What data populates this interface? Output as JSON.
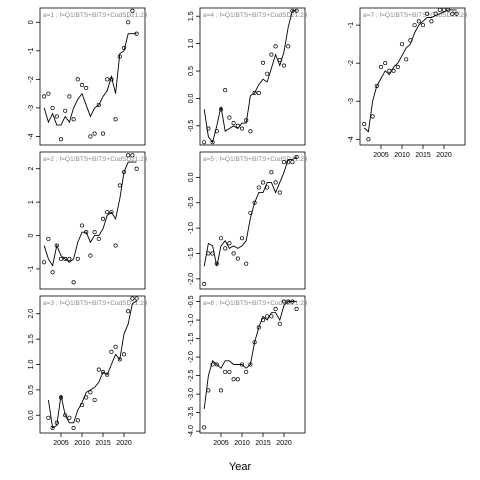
{
  "xlabel": "Year",
  "chart_data": [
    {
      "type": "scatter",
      "title": "a=1 : f=Q1!BTS+BITS+CodSD21:23",
      "xlabel": "",
      "ylabel": "",
      "xlim": [
        2000,
        2025
      ],
      "ylim": [
        -4.3,
        0.5
      ],
      "yticks": [
        "0",
        "-1",
        "-2",
        "-3",
        "-4"
      ],
      "xticks": [],
      "series": [
        {
          "kind": "points",
          "x": [
            2001,
            2002,
            2003,
            2004,
            2005,
            2006,
            2007,
            2008,
            2009,
            2010,
            2011,
            2012,
            2013,
            2014,
            2015,
            2016,
            2017,
            2018,
            2019,
            2020,
            2021,
            2022,
            2023
          ],
          "y": [
            -2.6,
            -2.5,
            -3.0,
            -3.3,
            -4.1,
            -3.1,
            -2.6,
            -3.4,
            -2.0,
            -2.2,
            -2.3,
            -4.0,
            -3.9,
            -2.9,
            -3.9,
            -2.0,
            -2.0,
            -3.4,
            -1.2,
            -0.9,
            0.0,
            0.4,
            -0.4
          ]
        },
        {
          "kind": "line",
          "x": [
            2001,
            2002,
            2003,
            2004,
            2005,
            2006,
            2007,
            2008,
            2009,
            2010,
            2011,
            2012,
            2013,
            2014,
            2015,
            2016,
            2017,
            2018,
            2019,
            2020,
            2021,
            2022,
            2023
          ],
          "y": [
            -3.0,
            -3.5,
            -3.2,
            -3.6,
            -3.6,
            -3.3,
            -3.5,
            -3.0,
            -2.7,
            -2.5,
            -2.9,
            -3.3,
            -3.0,
            -2.9,
            -2.6,
            -2.4,
            -1.9,
            -2.5,
            -1.1,
            -1.0,
            -0.4,
            -0.4,
            -0.4
          ]
        }
      ]
    },
    {
      "type": "scatter",
      "title": "a=2 : f=Q1!BTS+BITS+CodSD21:23",
      "xlabel": "",
      "ylabel": "",
      "xlim": [
        2000,
        2025
      ],
      "ylim": [
        -1.6,
        2.5
      ],
      "yticks": [
        "2",
        "1",
        "0",
        "-1"
      ],
      "xticks": [],
      "series": [
        {
          "kind": "points",
          "x": [
            2001,
            2002,
            2003,
            2004,
            2005,
            2006,
            2007,
            2008,
            2009,
            2010,
            2011,
            2012,
            2013,
            2014,
            2015,
            2016,
            2017,
            2018,
            2019,
            2020,
            2021,
            2022,
            2023
          ],
          "y": [
            -0.8,
            -0.1,
            -1.1,
            -0.3,
            -0.7,
            -0.7,
            -0.7,
            -1.4,
            -0.7,
            0.3,
            0.1,
            -0.6,
            0.1,
            -0.1,
            0.5,
            0.7,
            0.7,
            -0.3,
            1.5,
            1.9,
            2.4,
            2.4,
            2.0
          ]
        },
        {
          "kind": "line",
          "x": [
            2001,
            2002,
            2003,
            2004,
            2005,
            2006,
            2007,
            2008,
            2009,
            2010,
            2011,
            2012,
            2013,
            2014,
            2015,
            2016,
            2017,
            2018,
            2019,
            2020,
            2021,
            2022,
            2023
          ],
          "y": [
            -0.3,
            -0.7,
            -0.9,
            -0.3,
            -0.6,
            -0.7,
            -0.8,
            -0.7,
            -0.2,
            0.1,
            0.1,
            -0.2,
            0.0,
            0.0,
            0.2,
            0.6,
            0.7,
            0.5,
            1.1,
            1.9,
            2.2,
            2.2,
            2.2
          ]
        }
      ]
    },
    {
      "type": "scatter",
      "title": "a=3 : f=Q1!BTS+BITS+CodSD21:23",
      "xlabel": "",
      "ylabel": "",
      "xlim": [
        2000,
        2025
      ],
      "ylim": [
        -0.35,
        2.35
      ],
      "yticks": [
        "2.0",
        "1.5",
        "1.0",
        "0.5",
        "0.0"
      ],
      "xticks": [
        "2005",
        "2010",
        "2015",
        "2020"
      ],
      "series": [
        {
          "kind": "points",
          "x": [
            2002,
            2003,
            2004,
            2005,
            2006,
            2007,
            2008,
            2009,
            2010,
            2011,
            2012,
            2013,
            2014,
            2015,
            2016,
            2017,
            2018,
            2019,
            2020,
            2021,
            2022,
            2023
          ],
          "y": [
            -0.05,
            -0.25,
            -0.15,
            0.35,
            0.0,
            -0.05,
            -0.25,
            -0.1,
            0.2,
            0.35,
            0.45,
            0.3,
            0.9,
            0.85,
            0.8,
            1.25,
            1.35,
            1.1,
            1.2,
            2.05,
            2.3,
            2.3
          ]
        },
        {
          "kind": "line",
          "x": [
            2002,
            2003,
            2004,
            2005,
            2006,
            2007,
            2008,
            2009,
            2010,
            2011,
            2012,
            2013,
            2014,
            2015,
            2016,
            2017,
            2018,
            2019,
            2020,
            2021,
            2022,
            2023
          ],
          "y": [
            0.3,
            -0.25,
            -0.2,
            0.4,
            0.0,
            -0.15,
            -0.15,
            0.1,
            0.25,
            0.45,
            0.5,
            0.55,
            0.65,
            0.85,
            0.8,
            1.0,
            1.2,
            1.1,
            1.6,
            1.8,
            2.2,
            2.25
          ]
        }
      ]
    },
    {
      "type": "scatter",
      "title": "a=4 : f=Q1!BTS+BITS+CodSD21:23",
      "xlabel": "",
      "ylabel": "",
      "xlim": [
        2000,
        2025
      ],
      "ylim": [
        -0.85,
        1.65
      ],
      "yticks": [
        "1.5",
        "1.0",
        "0.5",
        "0.0",
        "-0.5"
      ],
      "xticks": [],
      "series": [
        {
          "kind": "points",
          "x": [
            2001,
            2002,
            2003,
            2004,
            2005,
            2006,
            2007,
            2008,
            2009,
            2010,
            2011,
            2012,
            2013,
            2014,
            2015,
            2016,
            2017,
            2018,
            2019,
            2020,
            2021,
            2022,
            2023
          ],
          "y": [
            -0.8,
            -0.55,
            -0.8,
            -0.6,
            -0.2,
            0.15,
            -0.35,
            -0.45,
            -0.5,
            -0.55,
            -0.4,
            -0.6,
            0.1,
            0.1,
            0.65,
            0.45,
            0.8,
            0.95,
            0.7,
            0.6,
            0.95,
            1.6,
            1.6
          ]
        },
        {
          "kind": "line",
          "x": [
            2001,
            2002,
            2003,
            2004,
            2005,
            2006,
            2007,
            2008,
            2009,
            2010,
            2011,
            2012,
            2013,
            2014,
            2015,
            2016,
            2017,
            2018,
            2019,
            2020,
            2021,
            2022,
            2023
          ],
          "y": [
            -0.2,
            -0.7,
            -0.8,
            -0.5,
            -0.15,
            -0.6,
            -0.55,
            -0.5,
            -0.55,
            -0.45,
            -0.45,
            0.05,
            0.1,
            0.25,
            0.35,
            0.3,
            0.55,
            0.8,
            0.6,
            0.85,
            1.3,
            1.6,
            1.6
          ]
        }
      ]
    },
    {
      "type": "scatter",
      "title": "a=5 : f=Q1!BTS+BITS+CodSD21:23",
      "xlabel": "",
      "ylabel": "",
      "xlim": [
        2000,
        2025
      ],
      "ylim": [
        -2.2,
        0.5
      ],
      "yticks": [
        "0.0",
        "-0.5",
        "-1.0",
        "-1.5",
        "-2.0"
      ],
      "xticks": [],
      "series": [
        {
          "kind": "points",
          "x": [
            2001,
            2002,
            2003,
            2004,
            2005,
            2006,
            2007,
            2008,
            2009,
            2010,
            2011,
            2012,
            2013,
            2014,
            2015,
            2016,
            2017,
            2018,
            2019,
            2020,
            2021,
            2022,
            2023
          ],
          "y": [
            -2.1,
            -1.5,
            -1.5,
            -1.7,
            -1.2,
            -1.4,
            -1.3,
            -1.5,
            -1.6,
            -1.2,
            -1.7,
            -0.7,
            -0.5,
            -0.2,
            -0.1,
            -0.2,
            0.1,
            -0.1,
            -0.3,
            0.3,
            0.3,
            0.3,
            0.4
          ]
        },
        {
          "kind": "line",
          "x": [
            2001,
            2002,
            2003,
            2004,
            2005,
            2006,
            2007,
            2008,
            2009,
            2010,
            2011,
            2012,
            2013,
            2014,
            2015,
            2016,
            2017,
            2018,
            2019,
            2020,
            2021,
            2022,
            2023
          ],
          "y": [
            -1.75,
            -1.3,
            -1.35,
            -1.75,
            -1.35,
            -1.25,
            -1.4,
            -1.35,
            -1.4,
            -1.35,
            -1.25,
            -0.8,
            -0.5,
            -0.3,
            -0.3,
            -0.1,
            -0.1,
            -0.3,
            -0.1,
            0.1,
            0.35,
            0.35,
            0.4
          ]
        }
      ]
    },
    {
      "type": "scatter",
      "title": "a=6 : f=Q1!BTS+BITS+CodSD21:23",
      "xlabel": "",
      "ylabel": "",
      "xlim": [
        2000,
        2025
      ],
      "ylim": [
        -4.05,
        -0.35
      ],
      "yticks": [
        "-0.5",
        "-1.0",
        "-1.5",
        "-2.0",
        "-2.5",
        "-3.0",
        "-3.5",
        "-4.0"
      ],
      "xticks": [
        "2005",
        "2010",
        "2015",
        "2020"
      ],
      "series": [
        {
          "kind": "points",
          "x": [
            2001,
            2002,
            2003,
            2004,
            2005,
            2006,
            2007,
            2008,
            2009,
            2010,
            2011,
            2012,
            2013,
            2014,
            2015,
            2016,
            2017,
            2018,
            2019,
            2020,
            2021,
            2022,
            2023
          ],
          "y": [
            -3.9,
            -2.9,
            -2.2,
            -2.2,
            -2.9,
            -2.4,
            -2.4,
            -2.6,
            -2.6,
            -2.2,
            -2.4,
            -2.2,
            -1.6,
            -1.2,
            -1.0,
            -0.9,
            -0.9,
            -0.7,
            -1.1,
            -0.5,
            -0.5,
            -0.5,
            -0.7
          ]
        },
        {
          "kind": "line",
          "x": [
            2001,
            2002,
            2003,
            2004,
            2005,
            2006,
            2007,
            2008,
            2009,
            2010,
            2011,
            2012,
            2013,
            2014,
            2015,
            2016,
            2017,
            2018,
            2019,
            2020,
            2021,
            2022,
            2023
          ],
          "y": [
            -3.4,
            -2.5,
            -2.1,
            -2.2,
            -2.3,
            -2.1,
            -2.1,
            -2.2,
            -2.2,
            -2.2,
            -2.3,
            -2.2,
            -1.6,
            -1.2,
            -0.9,
            -1.0,
            -0.8,
            -0.8,
            -1.0,
            -0.6,
            -0.5,
            -0.5,
            -0.5
          ]
        }
      ]
    },
    {
      "type": "scatter",
      "title": "a=7 : f=Q1!BTS+BITS+CodSD21:23",
      "xlabel": "",
      "ylabel": "",
      "xlim": [
        2000,
        2025
      ],
      "ylim": [
        -4.15,
        -0.55
      ],
      "yticks": [
        "-1",
        "-2",
        "-3",
        "-4"
      ],
      "xticks": [
        "2005",
        "2010",
        "2015",
        "2020"
      ],
      "series": [
        {
          "kind": "points",
          "x": [
            2001,
            2002,
            2003,
            2004,
            2005,
            2006,
            2007,
            2008,
            2009,
            2010,
            2011,
            2012,
            2013,
            2014,
            2015,
            2016,
            2017,
            2018,
            2019,
            2020,
            2021,
            2022,
            2023
          ],
          "y": [
            -3.6,
            -4.0,
            -3.4,
            -2.6,
            -2.1,
            -2.0,
            -2.2,
            -2.2,
            -2.1,
            -1.5,
            -1.9,
            -1.4,
            -1.0,
            -0.9,
            -1.0,
            -0.7,
            -0.9,
            -0.7,
            -0.6,
            -0.6,
            -0.6,
            -0.7,
            -0.7
          ]
        },
        {
          "kind": "line",
          "x": [
            2001,
            2002,
            2003,
            2004,
            2005,
            2006,
            2007,
            2008,
            2009,
            2010,
            2011,
            2012,
            2013,
            2014,
            2015,
            2016,
            2017,
            2018,
            2019,
            2020,
            2021,
            2022,
            2023
          ],
          "y": [
            -3.7,
            -3.8,
            -3.0,
            -2.6,
            -2.4,
            -2.2,
            -2.3,
            -2.1,
            -2.0,
            -1.8,
            -1.6,
            -1.5,
            -1.2,
            -1.0,
            -0.9,
            -0.8,
            -0.8,
            -0.75,
            -0.7,
            -0.65,
            -0.6,
            -0.6,
            -0.6
          ]
        }
      ]
    }
  ]
}
